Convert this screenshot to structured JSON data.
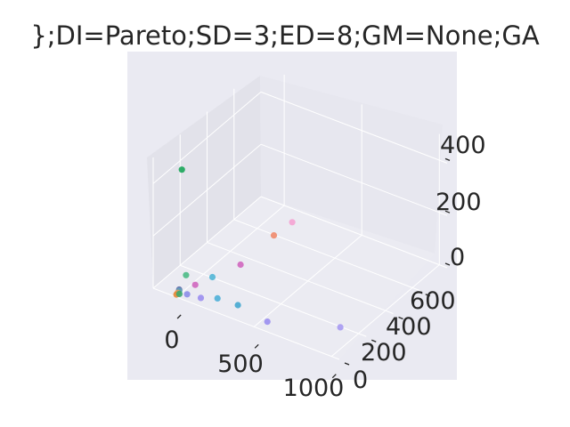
{
  "chart_data": {
    "type": "scatter",
    "projection": "3d",
    "title": "};DI=Pareto;SD=3;ED=8;GM=None;GA",
    "xlabel": "",
    "ylabel": "",
    "zlabel": "",
    "x_ticks": [
      "0",
      "500",
      "1000"
    ],
    "y_ticks": [
      "0",
      "200",
      "400",
      "600"
    ],
    "z_ticks": [
      "0",
      "200",
      "400"
    ],
    "xlim": [
      -150,
      1050
    ],
    "ylim": [
      0,
      800
    ],
    "zlim": [
      0,
      500
    ],
    "grid": true,
    "legend": "none",
    "colors": {
      "pane_back": "#e7e7ef",
      "pane_side": "#e2e2ea",
      "pane_floor": "#ebebf2",
      "background": "#eaeaf2",
      "grid": "#ffffff"
    },
    "points": [
      {
        "x": 0,
        "y": 40,
        "z": 470,
        "color": "#1aa659"
      },
      {
        "x": 260,
        "y": 560,
        "z": 100,
        "color": "#f5a3d3"
      },
      {
        "x": 220,
        "y": 470,
        "z": 80,
        "color": "#ef8a6b"
      },
      {
        "x": 170,
        "y": 280,
        "z": 40,
        "color": "#d067bf"
      },
      {
        "x": 10,
        "y": 60,
        "z": 60,
        "color": "#4dbb86"
      },
      {
        "x": 110,
        "y": 140,
        "z": 40,
        "color": "#52b6d6"
      },
      {
        "x": 60,
        "y": 70,
        "z": 30,
        "color": "#d067bf"
      },
      {
        "x": 0,
        "y": 20,
        "z": 20,
        "color": "#5e6bab"
      },
      {
        "x": 0,
        "y": 20,
        "z": 15,
        "color": "#5fa0b8"
      },
      {
        "x": 0,
        "y": 10,
        "z": 12,
        "color": "#e59b5b"
      },
      {
        "x": 0,
        "y": 0,
        "z": 10,
        "color": "#e58a3a"
      },
      {
        "x": 10,
        "y": 10,
        "z": 10,
        "color": "#3ba870"
      },
      {
        "x": 60,
        "y": 10,
        "z": 20,
        "color": "#8d8ee8"
      },
      {
        "x": 140,
        "y": 20,
        "z": 20,
        "color": "#9b8ef0"
      },
      {
        "x": 230,
        "y": 40,
        "z": 30,
        "color": "#4fb0d8"
      },
      {
        "x": 370,
        "y": 30,
        "z": 40,
        "color": "#45a9d0"
      },
      {
        "x": 560,
        "y": 30,
        "z": 20,
        "color": "#9a8ef0"
      },
      {
        "x": 900,
        "y": 180,
        "z": 10,
        "color": "#a79af2"
      }
    ]
  }
}
